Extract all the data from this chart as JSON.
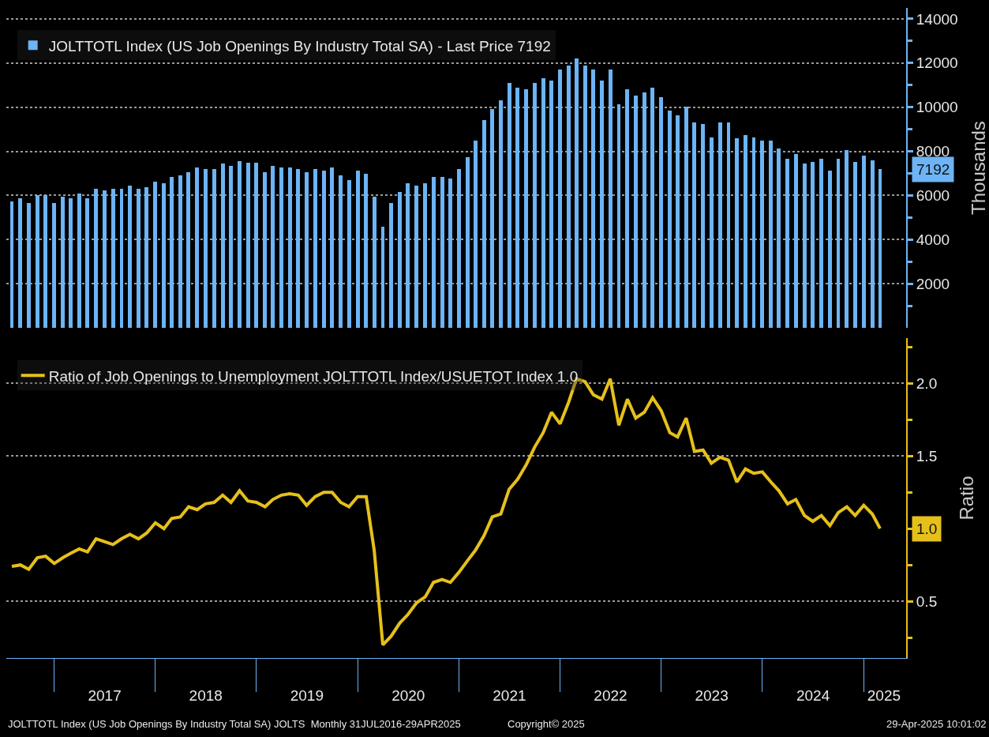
{
  "chart_data": [
    {
      "type": "bar",
      "legend": "top left",
      "grid": "y",
      "tick_labels": "y",
      "ylabel": "Thousands",
      "x": [
        "2016-08",
        "2016-09",
        "2016-10",
        "2016-11",
        "2016-12",
        "2017-01",
        "2017-02",
        "2017-03",
        "2017-04",
        "2017-05",
        "2017-06",
        "2017-07",
        "2017-08",
        "2017-09",
        "2017-10",
        "2017-11",
        "2017-12",
        "2018-01",
        "2018-02",
        "2018-03",
        "2018-04",
        "2018-05",
        "2018-06",
        "2018-07",
        "2018-08",
        "2018-09",
        "2018-10",
        "2018-11",
        "2018-12",
        "2019-01",
        "2019-02",
        "2019-03",
        "2019-04",
        "2019-05",
        "2019-06",
        "2019-07",
        "2019-08",
        "2019-09",
        "2019-10",
        "2019-11",
        "2019-12",
        "2020-01",
        "2020-02",
        "2020-03",
        "2020-04",
        "2020-05",
        "2020-06",
        "2020-07",
        "2020-08",
        "2020-09",
        "2020-10",
        "2020-11",
        "2020-12",
        "2021-01",
        "2021-02",
        "2021-03",
        "2021-04",
        "2021-05",
        "2021-06",
        "2021-07",
        "2021-08",
        "2021-09",
        "2021-10",
        "2021-11",
        "2021-12",
        "2022-01",
        "2022-02",
        "2022-03",
        "2022-04",
        "2022-05",
        "2022-06",
        "2022-07",
        "2022-08",
        "2022-09",
        "2022-10",
        "2022-11",
        "2022-12",
        "2023-01",
        "2023-02",
        "2023-03",
        "2023-04",
        "2023-05",
        "2023-06",
        "2023-07",
        "2023-08",
        "2023-09",
        "2023-10",
        "2023-11",
        "2023-12",
        "2024-01",
        "2024-02",
        "2024-03",
        "2024-04",
        "2024-05",
        "2024-06",
        "2024-07",
        "2024-08",
        "2024-09",
        "2024-10",
        "2024-11",
        "2024-12",
        "2025-01",
        "2025-02",
        "2025-03"
      ],
      "xlim": [
        "2016-07-12",
        "2025-06-03"
      ],
      "ylim": [
        0,
        14500
      ],
      "yticks": [
        {
          "value": 1000,
          "label": null
        },
        2000,
        {
          "value": 3000,
          "label": null
        },
        4000,
        {
          "value": 5000,
          "label": null
        },
        6000,
        {
          "value": 7000,
          "label": null
        },
        8000,
        {
          "value": 9000,
          "label": null
        },
        10000,
        {
          "value": 11000,
          "label": null
        },
        12000,
        {
          "value": 13000,
          "label": null
        },
        14000
      ],
      "series": [
        {
          "name": "JOLTTOTL Index (US Job Openings By Industry Total SA) - Last Price 7192",
          "color": "#6cb4f5",
          "values": [
            5720,
            5860,
            5650,
            6000,
            6000,
            5650,
            5960,
            5870,
            6070,
            5870,
            6310,
            6230,
            6310,
            6310,
            6450,
            6310,
            6380,
            6620,
            6540,
            6850,
            6920,
            7060,
            7280,
            7210,
            7210,
            7450,
            7350,
            7570,
            7500,
            7500,
            7060,
            7350,
            7280,
            7280,
            7210,
            7060,
            7210,
            7140,
            7280,
            6920,
            6680,
            7140,
            6980,
            5960,
            4580,
            5650,
            6160,
            6540,
            6450,
            6540,
            6850,
            6850,
            6770,
            7210,
            7730,
            8500,
            9400,
            9910,
            10300,
            11100,
            10900,
            10800,
            11100,
            11300,
            11200,
            11700,
            11900,
            12200,
            11900,
            11700,
            11200,
            11700,
            10140,
            10820,
            10520,
            10670,
            10880,
            10450,
            9840,
            9630,
            10020,
            9310,
            9240,
            8640,
            9310,
            9310,
            8580,
            8730,
            8640,
            8490,
            8490,
            8110,
            7670,
            7890,
            7440,
            7520,
            7670,
            7140,
            7670,
            8040,
            7520,
            7810,
            7590,
            7192
          ]
        }
      ],
      "value_labels": [
        null,
        null,
        null,
        null,
        null,
        null,
        null,
        null,
        null,
        null,
        null,
        null,
        null,
        null,
        null,
        null,
        null,
        null,
        null,
        null,
        null,
        null,
        null,
        null,
        null,
        null,
        null,
        null,
        null,
        null,
        null,
        null,
        null,
        null,
        null,
        null,
        null,
        null,
        null,
        null,
        null,
        null,
        null,
        null,
        null,
        null,
        null,
        null,
        null,
        null,
        null,
        null,
        null,
        null,
        null,
        null,
        null,
        null,
        null,
        null,
        null,
        null,
        null,
        null,
        null,
        null,
        null,
        null,
        null,
        null,
        null,
        null,
        null,
        null,
        null,
        null,
        null,
        null,
        null,
        null,
        null,
        null,
        null,
        null,
        null,
        null,
        null,
        null,
        null,
        null,
        null,
        null,
        null,
        null,
        null,
        null,
        null,
        null,
        null,
        null,
        null,
        null,
        null,
        "7192"
      ]
    },
    {
      "type": "line",
      "legend": "top left",
      "grid": "y",
      "ylabel": "Ratio",
      "x": [
        "2016-08",
        "2016-09",
        "2016-10",
        "2016-11",
        "2016-12",
        "2017-01",
        "2017-02",
        "2017-03",
        "2017-04",
        "2017-05",
        "2017-06",
        "2017-07",
        "2017-08",
        "2017-09",
        "2017-10",
        "2017-11",
        "2017-12",
        "2018-01",
        "2018-02",
        "2018-03",
        "2018-04",
        "2018-05",
        "2018-06",
        "2018-07",
        "2018-08",
        "2018-09",
        "2018-10",
        "2018-11",
        "2018-12",
        "2019-01",
        "2019-02",
        "2019-03",
        "2019-04",
        "2019-05",
        "2019-06",
        "2019-07",
        "2019-08",
        "2019-09",
        "2019-10",
        "2019-11",
        "2019-12",
        "2020-01",
        "2020-02",
        "2020-03",
        "2020-04",
        "2020-05",
        "2020-06",
        "2020-07",
        "2020-08",
        "2020-09",
        "2020-10",
        "2020-11",
        "2020-12",
        "2021-01",
        "2021-02",
        "2021-03",
        "2021-04",
        "2021-05",
        "2021-06",
        "2021-07",
        "2021-08",
        "2021-09",
        "2021-10",
        "2021-11",
        "2021-12",
        "2022-01",
        "2022-02",
        "2022-03",
        "2022-04",
        "2022-05",
        "2022-06",
        "2022-07",
        "2022-08",
        "2022-09",
        "2022-10",
        "2022-11",
        "2022-12",
        "2023-01",
        "2023-02",
        "2023-03",
        "2023-04",
        "2023-05",
        "2023-06",
        "2023-07",
        "2023-08",
        "2023-09",
        "2023-10",
        "2023-11",
        "2023-12",
        "2024-01",
        "2024-02",
        "2024-03",
        "2024-04",
        "2024-05",
        "2024-06",
        "2024-07",
        "2024-08",
        "2024-09",
        "2024-10",
        "2024-11",
        "2024-12",
        "2025-01",
        "2025-02",
        "2025-03"
      ],
      "xlim": [
        "2016-07-12",
        "2025-06-03"
      ],
      "xticks": [
        {
          "value": "2017-07-02",
          "label": "2017"
        },
        {
          "value": "2018-07-02",
          "label": "2018"
        },
        {
          "value": "2019-07-02",
          "label": "2019"
        },
        {
          "value": "2020-07-02",
          "label": "2020"
        },
        {
          "value": "2021-07-02",
          "label": "2021"
        },
        {
          "value": "2022-07-02",
          "label": "2022"
        },
        {
          "value": "2023-07-02",
          "label": "2023"
        },
        {
          "value": "2024-07-02",
          "label": "2024"
        },
        {
          "value": "2025-03-15",
          "label": "2025"
        }
      ],
      "ylim": [
        0.11,
        2.31
      ],
      "yticks": [
        {
          "value": 0.25,
          "label": null
        },
        {
          "value": 0.5,
          "label": "0.5"
        },
        {
          "value": 0.75,
          "label": null
        },
        {
          "value": 1,
          "label": null
        },
        {
          "value": 1.25,
          "label": null
        },
        {
          "value": 1.5,
          "label": "1.5"
        },
        {
          "value": 1.75,
          "label": null
        },
        {
          "value": 2,
          "label": "2.0"
        },
        {
          "value": 2.25,
          "label": null
        }
      ],
      "series": [
        {
          "name": "Ratio of Job Openings to Unemployment JOLTTOTL Index/USUETOT Index 1.0",
          "color": "#e6c01a",
          "values": [
            0.74,
            0.75,
            0.72,
            0.8,
            0.81,
            0.76,
            0.8,
            0.83,
            0.86,
            0.84,
            0.93,
            0.91,
            0.89,
            0.93,
            0.96,
            0.93,
            0.97,
            1.04,
            1.0,
            1.07,
            1.08,
            1.15,
            1.13,
            1.17,
            1.18,
            1.23,
            1.18,
            1.26,
            1.19,
            1.18,
            1.15,
            1.2,
            1.23,
            1.24,
            1.23,
            1.16,
            1.22,
            1.25,
            1.25,
            1.18,
            1.15,
            1.22,
            1.22,
            0.85,
            0.2,
            0.26,
            0.35,
            0.41,
            0.49,
            0.53,
            0.63,
            0.65,
            0.63,
            0.7,
            0.78,
            0.85,
            0.95,
            1.08,
            1.1,
            1.27,
            1.34,
            1.44,
            1.56,
            1.66,
            1.8,
            1.72,
            1.87,
            2.03,
            2.01,
            1.92,
            1.89,
            2.03,
            1.71,
            1.89,
            1.76,
            1.8,
            1.9,
            1.81,
            1.66,
            1.63,
            1.76,
            1.53,
            1.54,
            1.45,
            1.49,
            1.47,
            1.32,
            1.41,
            1.38,
            1.39,
            1.32,
            1.26,
            1.17,
            1.2,
            1.09,
            1.05,
            1.09,
            1.02,
            1.11,
            1.15,
            1.09,
            1.16,
            1.1,
            1.0
          ]
        }
      ],
      "value_labels": [
        null,
        null,
        null,
        null,
        null,
        null,
        null,
        null,
        null,
        null,
        null,
        null,
        null,
        null,
        null,
        null,
        null,
        null,
        null,
        null,
        null,
        null,
        null,
        null,
        null,
        null,
        null,
        null,
        null,
        null,
        null,
        null,
        null,
        null,
        null,
        null,
        null,
        null,
        null,
        null,
        null,
        null,
        null,
        null,
        null,
        null,
        null,
        null,
        null,
        null,
        null,
        null,
        null,
        null,
        null,
        null,
        null,
        null,
        null,
        null,
        null,
        null,
        null,
        null,
        null,
        null,
        null,
        null,
        null,
        null,
        null,
        null,
        null,
        null,
        null,
        null,
        null,
        null,
        null,
        null,
        null,
        null,
        null,
        null,
        null,
        null,
        null,
        null,
        null,
        null,
        null,
        null,
        null,
        null,
        null,
        null,
        null,
        null,
        null,
        null,
        null,
        null,
        null,
        "1.0"
      ],
      "annotations": [
        "JOLTTOTL Index (US Job Openings By Industry Total SA) JOLTS  Monthly 31JUL2016-29APR2025",
        "Copyright© 2025",
        "29-Apr-2025 10:01:02"
      ]
    }
  ]
}
